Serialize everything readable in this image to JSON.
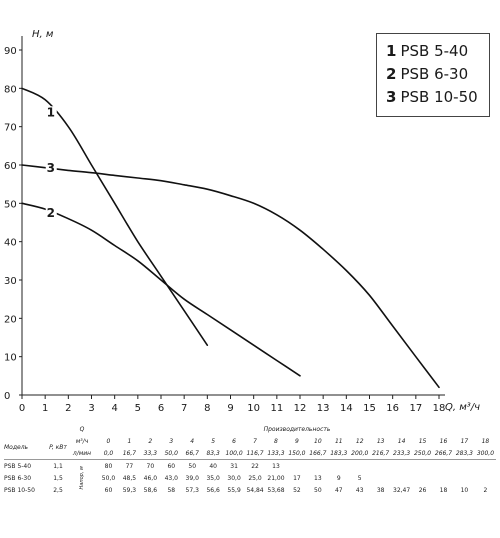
{
  "chart_data": {
    "type": "line",
    "xlabel": "Q, м³/ч",
    "ylabel": "H, м",
    "xlim": [
      0,
      18
    ],
    "ylim": [
      0,
      90
    ],
    "xticks": [
      "0",
      "1",
      "2",
      "3",
      "4",
      "5",
      "6",
      "7",
      "8",
      "9",
      "10",
      "11",
      "12",
      "13",
      "14",
      "15",
      "16",
      "17",
      "18"
    ],
    "yticks": [
      "0",
      "10",
      "20",
      "30",
      "40",
      "50",
      "60",
      "70",
      "80",
      "90"
    ],
    "grid": false,
    "legend_position": "top-right",
    "series": [
      {
        "name": "PSB 5-40",
        "marker": "1",
        "x": [
          0,
          1,
          2,
          3,
          4,
          5,
          6,
          7,
          8
        ],
        "y": [
          80,
          77,
          70,
          60,
          50,
          40,
          31,
          22,
          13
        ]
      },
      {
        "name": "PSB 6-30",
        "marker": "2",
        "x": [
          0,
          1,
          2,
          3,
          4,
          5,
          6,
          7,
          8,
          9,
          10,
          11,
          12
        ],
        "y": [
          50,
          48.5,
          46.0,
          43.0,
          39.0,
          35.0,
          30.0,
          25.0,
          21.0,
          17,
          13,
          9,
          5
        ]
      },
      {
        "name": "PSB 10-50",
        "marker": "3",
        "x": [
          0,
          1,
          2,
          3,
          4,
          5,
          6,
          7,
          8,
          9,
          10,
          11,
          12,
          13,
          14,
          15,
          16,
          17,
          18
        ],
        "y": [
          60,
          59.3,
          58.6,
          58,
          57.3,
          56.6,
          55.9,
          54.84,
          53.68,
          52,
          50,
          47,
          43,
          38,
          32.47,
          26,
          18,
          10,
          2
        ]
      }
    ]
  },
  "legend": [
    {
      "num": "1",
      "label": "PSB 5-40"
    },
    {
      "num": "2",
      "label": "PSB 6-30"
    },
    {
      "num": "3",
      "label": "PSB 10-50"
    }
  ],
  "table": {
    "group_header": "Производительность",
    "col_model": "Модель",
    "col_power": "P, кВт",
    "q_symbol": "Q",
    "unit_m3h": "м³/ч",
    "unit_lmin": "л/мин",
    "head_label": "Напор, м",
    "q_m3h": [
      "0",
      "1",
      "2",
      "3",
      "4",
      "5",
      "6",
      "7",
      "8",
      "9",
      "10",
      "11",
      "12",
      "13",
      "14",
      "15",
      "16",
      "17",
      "18"
    ],
    "q_lmin": [
      "0,0",
      "16,7",
      "33,3",
      "50,0",
      "66,7",
      "83,3",
      "100,0",
      "116,7",
      "133,3",
      "150,0",
      "166,7",
      "183,3",
      "200,0",
      "216,7",
      "233,3",
      "250,0",
      "266,7",
      "283,3",
      "300,0"
    ],
    "rows": [
      {
        "model": "PSB 5-40",
        "power": "1,1",
        "values": [
          "80",
          "77",
          "70",
          "60",
          "50",
          "40",
          "31",
          "22",
          "13",
          "",
          "",
          "",
          "",
          "",
          "",
          "",
          "",
          "",
          ""
        ]
      },
      {
        "model": "PSB 6-30",
        "power": "1,5",
        "values": [
          "50,0",
          "48,5",
          "46,0",
          "43,0",
          "39,0",
          "35,0",
          "30,0",
          "25,0",
          "21,00",
          "17",
          "13",
          "9",
          "5",
          "",
          "",
          "",
          "",
          "",
          ""
        ]
      },
      {
        "model": "PSB 10-50",
        "power": "2,5",
        "values": [
          "60",
          "59,3",
          "58,6",
          "58",
          "57,3",
          "56,6",
          "55,9",
          "54,84",
          "53,68",
          "52",
          "50",
          "47",
          "43",
          "38",
          "32,47",
          "26",
          "18",
          "10",
          "2"
        ]
      }
    ]
  }
}
